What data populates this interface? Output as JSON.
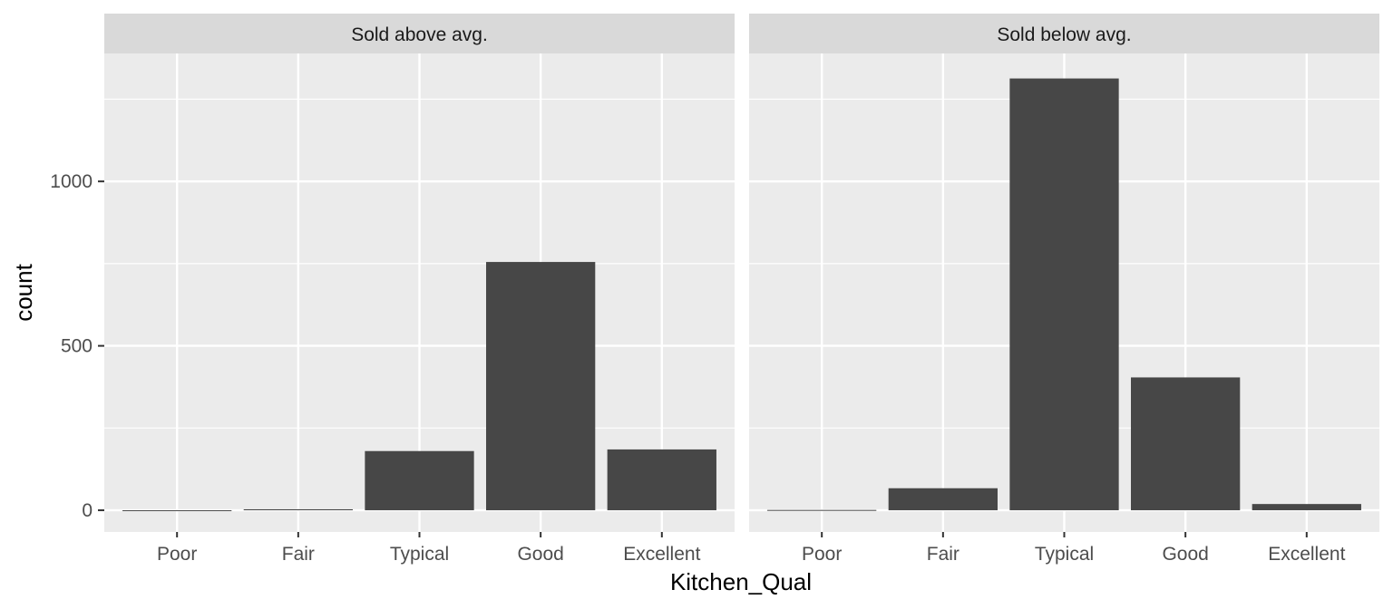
{
  "chart_data": {
    "type": "bar",
    "facet_type": "facet_wrap",
    "xlabel": "Kitchen_Qual",
    "ylabel": "count",
    "categories": [
      "Poor",
      "Fair",
      "Typical",
      "Good",
      "Excellent"
    ],
    "y_ticks": [
      0,
      500,
      1000
    ],
    "ylim": [
      -66,
      1389
    ],
    "grid": true,
    "panels": [
      {
        "label": "Sold above avg.",
        "values": [
          0,
          3,
          180,
          755,
          185
        ]
      },
      {
        "label": "Sold below avg.",
        "values": [
          1,
          67,
          1313,
          404,
          19
        ]
      }
    ],
    "colors": {
      "panel_bg": "#ebebeb",
      "strip_bg": "#d9d9d9",
      "grid": "#ffffff",
      "bar": "#474747",
      "tick": "#333333"
    }
  }
}
